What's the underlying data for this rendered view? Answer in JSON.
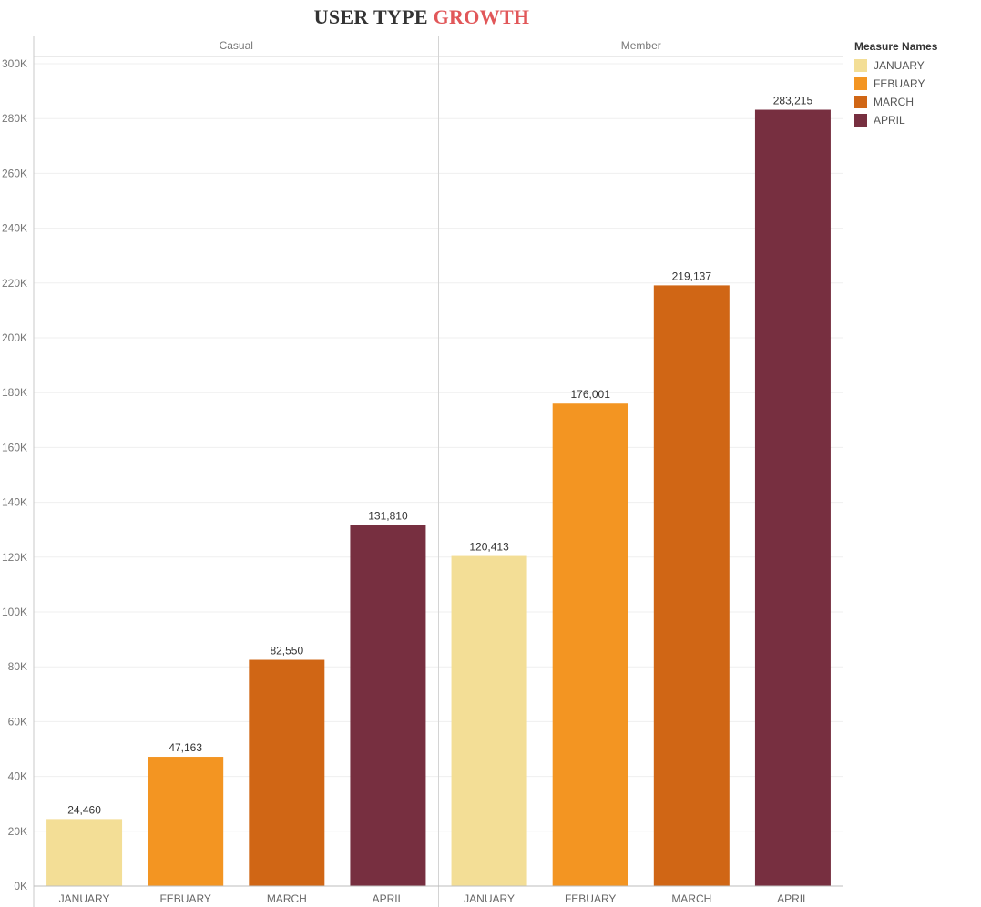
{
  "title": {
    "part1": "USER TYPE",
    "part2": "GROWTH",
    "part2_color": "#e15759"
  },
  "legend": {
    "title": "Measure Names",
    "items": [
      {
        "label": "JANUARY",
        "color": "#f3de96"
      },
      {
        "label": "FEBUARY",
        "color": "#f39522"
      },
      {
        "label": "MARCH",
        "color": "#d06615"
      },
      {
        "label": "APRIL",
        "color": "#772f40"
      }
    ]
  },
  "chart_data": {
    "type": "bar",
    "title": "USER TYPE GROWTH",
    "panels": [
      "Casual",
      "Member"
    ],
    "categories": [
      "JANUARY",
      "FEBUARY",
      "MARCH",
      "APRIL"
    ],
    "series": [
      {
        "name": "Casual",
        "values": [
          24460,
          47163,
          82550,
          131810
        ]
      },
      {
        "name": "Member",
        "values": [
          120413,
          176001,
          219137,
          283215
        ]
      }
    ],
    "data_labels": [
      [
        "24,460",
        "47,163",
        "82,550",
        "131,810"
      ],
      [
        "120,413",
        "176,001",
        "219,137",
        "283,215"
      ]
    ],
    "colors": [
      "#f3de96",
      "#f39522",
      "#d06615",
      "#772f40"
    ],
    "ylim": [
      0,
      300000
    ],
    "yticks": [
      0,
      20000,
      40000,
      60000,
      80000,
      100000,
      120000,
      140000,
      160000,
      180000,
      200000,
      220000,
      240000,
      260000,
      280000,
      300000
    ],
    "ytick_labels": [
      "0K",
      "20K",
      "40K",
      "60K",
      "80K",
      "100K",
      "120K",
      "140K",
      "160K",
      "180K",
      "200K",
      "220K",
      "240K",
      "260K",
      "280K",
      "300K"
    ],
    "grid": true,
    "legend_position": "right"
  }
}
